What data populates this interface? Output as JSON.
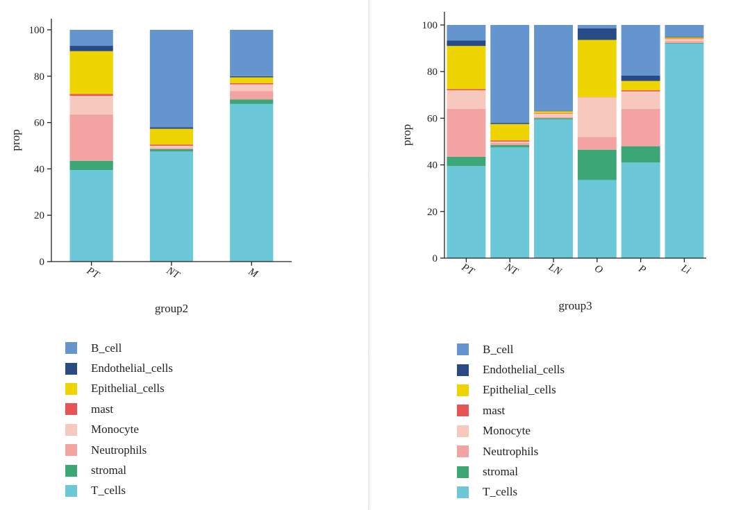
{
  "colors": {
    "B_cell": "#6495cf",
    "Endothelial_cells": "#284a85",
    "Epithelial_cells": "#eed400",
    "mast": "#e85356",
    "Monocyte": "#f7c8bd",
    "Neutrophils": "#f2a3a2",
    "stromal": "#3da677",
    "T_cells": "#6cc8d9"
  },
  "chart_data": [
    {
      "type": "bar",
      "stacked": true,
      "title": "",
      "xlabel": "group2",
      "ylabel": "prop",
      "ylim": [
        0,
        100
      ],
      "yticks": [
        0,
        20,
        40,
        60,
        80,
        100
      ],
      "categories": [
        "PT",
        "NT",
        "M"
      ],
      "series": [
        {
          "name": "T_cells",
          "values": [
            39.5,
            47.5,
            68
          ]
        },
        {
          "name": "stromal",
          "values": [
            4,
            1,
            2
          ]
        },
        {
          "name": "Neutrophils",
          "values": [
            20,
            0.5,
            3.5
          ]
        },
        {
          "name": "Monocyte",
          "values": [
            8,
            1,
            3
          ]
        },
        {
          "name": "mast",
          "values": [
            0.8,
            0.5,
            0.5
          ]
        },
        {
          "name": "Epithelial_cells",
          "values": [
            18.5,
            6.8,
            2.5
          ]
        },
        {
          "name": "Endothelial_cells",
          "values": [
            2.3,
            0.7,
            0.5
          ]
        },
        {
          "name": "B_cell",
          "values": [
            6.9,
            42,
            20
          ]
        }
      ],
      "legend": [
        "B_cell",
        "Endothelial_cells",
        "Epithelial_cells",
        "mast",
        "Monocyte",
        "Neutrophils",
        "stromal",
        "T_cells"
      ]
    },
    {
      "type": "bar",
      "stacked": true,
      "title": "",
      "xlabel": "group3",
      "ylabel": "prop",
      "ylim": [
        0,
        100
      ],
      "yticks": [
        0,
        20,
        40,
        60,
        80,
        100
      ],
      "categories": [
        "PT",
        "NT",
        "LN",
        "O",
        "P",
        "Li"
      ],
      "series": [
        {
          "name": "T_cells",
          "values": [
            39.5,
            47.5,
            59.5,
            33.5,
            41,
            92
          ]
        },
        {
          "name": "stromal",
          "values": [
            4,
            1,
            0.5,
            13,
            7,
            0.3
          ]
        },
        {
          "name": "Neutrophils",
          "values": [
            20.5,
            1,
            0.5,
            5.5,
            16,
            0.7
          ]
        },
        {
          "name": "Monocyte",
          "values": [
            8,
            0.5,
            1.5,
            17,
            7.5,
            1
          ]
        },
        {
          "name": "mast",
          "values": [
            0.5,
            0.5,
            0.2,
            0.1,
            0.5,
            0.2
          ]
        },
        {
          "name": "Epithelial_cells",
          "values": [
            18.5,
            7,
            0.8,
            24.5,
            4,
            0.5
          ]
        },
        {
          "name": "Endothelial_cells",
          "values": [
            2.3,
            0.5,
            0.2,
            5,
            2.3,
            0.3
          ]
        },
        {
          "name": "B_cell",
          "values": [
            6.7,
            42,
            36.8,
            1.4,
            21.7,
            5
          ]
        }
      ],
      "legend": [
        "B_cell",
        "Endothelial_cells",
        "Epithelial_cells",
        "mast",
        "Monocyte",
        "Neutrophils",
        "stromal",
        "T_cells"
      ]
    }
  ]
}
